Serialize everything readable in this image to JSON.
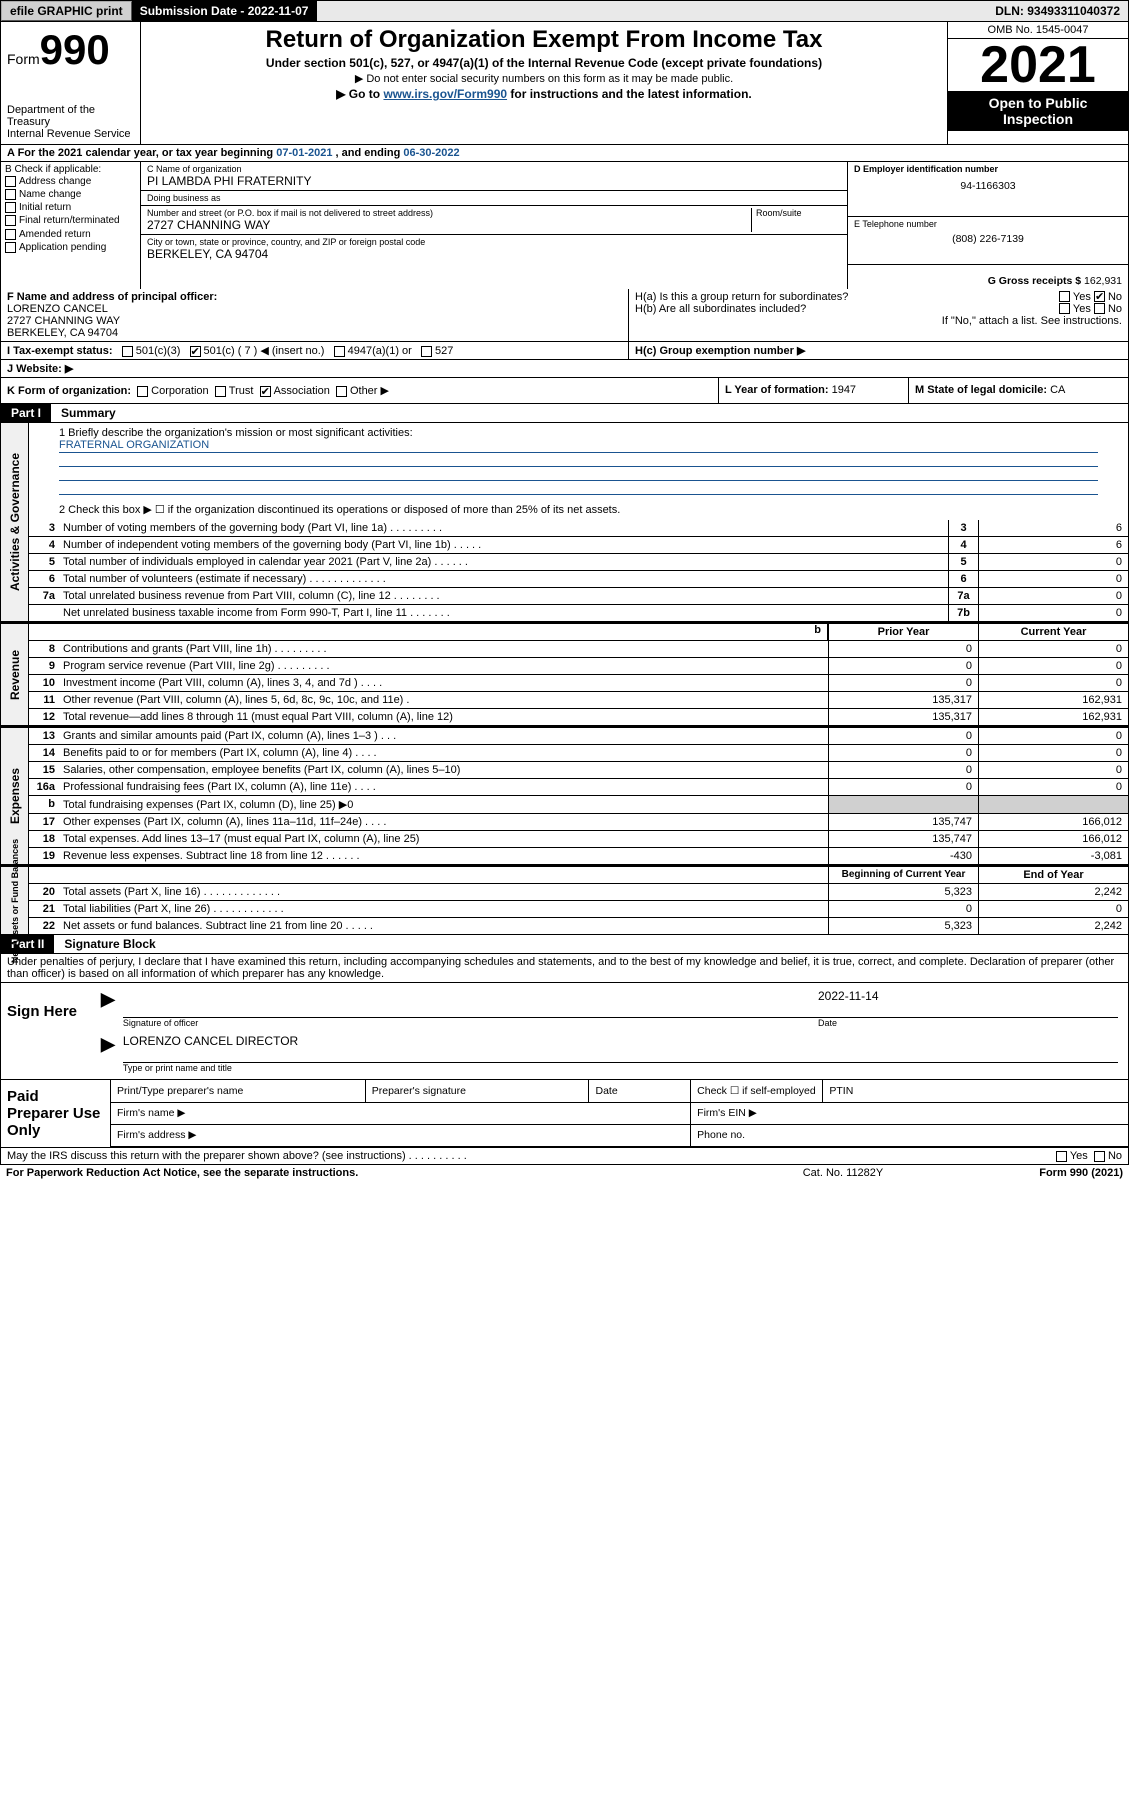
{
  "topbar": {
    "efile": "efile GRAPHIC print",
    "sub_label": "Submission Date - 2022-11-07",
    "dln": "DLN: 93493311040372"
  },
  "header": {
    "form": "Form",
    "form_no": "990",
    "dept": "Department of the Treasury\nInternal Revenue Service",
    "title": "Return of Organization Exempt From Income Tax",
    "sub1": "Under section 501(c), 527, or 4947(a)(1) of the Internal Revenue Code (except private foundations)",
    "sub2": "▶ Do not enter social security numbers on this form as it may be made public.",
    "sub3_a": "▶ Go to ",
    "sub3_link": "www.irs.gov/Form990",
    "sub3_b": " for instructions and the latest information.",
    "omb": "OMB No. 1545-0047",
    "year": "2021",
    "open": "Open to Public Inspection"
  },
  "taxyear": {
    "a": "A For the 2021 calendar year, or tax year beginning ",
    "begin": "07-01-2021",
    "mid": " , and ending ",
    "end": "06-30-2022"
  },
  "boxB": {
    "label": "B Check if applicable:",
    "items": [
      "Address change",
      "Name change",
      "Initial return",
      "Final return/terminated",
      "Amended return",
      "Application pending"
    ]
  },
  "boxC": {
    "name_lbl": "C Name of organization",
    "name": "PI LAMBDA PHI FRATERNITY",
    "dba_lbl": "Doing business as",
    "dba": "",
    "addr_lbl": "Number and street (or P.O. box if mail is not delivered to street address)",
    "room_lbl": "Room/suite",
    "addr": "2727 CHANNING WAY",
    "city_lbl": "City or town, state or province, country, and ZIP or foreign postal code",
    "city": "BERKELEY, CA  94704"
  },
  "boxD": {
    "lbl": "D Employer identification number",
    "val": "94-1166303"
  },
  "boxE": {
    "lbl": "E Telephone number",
    "val": "(808) 226-7139"
  },
  "boxG": {
    "lbl": "G Gross receipts $",
    "val": "162,931"
  },
  "boxF": {
    "lbl": "F Name and address of principal officer:",
    "name": "LORENZO CANCEL",
    "addr1": "2727 CHANNING WAY",
    "addr2": "BERKELEY, CA  94704"
  },
  "boxH": {
    "a": "H(a) Is this a group return for subordinates?",
    "b": "H(b) Are all subordinates included?",
    "note": "If \"No,\" attach a list. See instructions.",
    "c": "H(c) Group exemption number ▶",
    "yes": "Yes",
    "no": "No"
  },
  "boxI": {
    "lbl": "I   Tax-exempt status:",
    "c3": "501(c)(3)",
    "c": "501(c) ( 7 ) ◀ (insert no.)",
    "a1": "4947(a)(1) or",
    "s527": "527"
  },
  "boxJ": {
    "lbl": "J   Website: ▶",
    "val": ""
  },
  "boxK": {
    "lbl": "K Form of organization:",
    "opts": [
      "Corporation",
      "Trust",
      "Association",
      "Other ▶"
    ],
    "checked_idx": 2
  },
  "boxL": {
    "lbl": "L Year of formation:",
    "val": "1947"
  },
  "boxM": {
    "lbl": "M State of legal domicile:",
    "val": "CA"
  },
  "part1": {
    "hdr": "Part I",
    "title": "Summary"
  },
  "summary": {
    "line1_lbl": "1   Briefly describe the organization's mission or most significant activities:",
    "line1_val": "FRATERNAL ORGANIZATION",
    "line2": "2   Check this box ▶ ☐ if the organization discontinued its operations or disposed of more than 25% of its net assets.",
    "rows_gov": [
      {
        "n": "3",
        "d": "Number of voting members of the governing body (Part VI, line 1a)  .   .   .   .   .   .   .   .   .",
        "b": "3",
        "v": "6"
      },
      {
        "n": "4",
        "d": "Number of independent voting members of the governing body (Part VI, line 1b)  .   .   .   .   .",
        "b": "4",
        "v": "6"
      },
      {
        "n": "5",
        "d": "Total number of individuals employed in calendar year 2021 (Part V, line 2a)  .   .   .   .   .   .",
        "b": "5",
        "v": "0"
      },
      {
        "n": "6",
        "d": "Total number of volunteers (estimate if necessary)  .   .   .   .   .   .   .   .   .   .   .   .   .",
        "b": "6",
        "v": "0"
      },
      {
        "n": "7a",
        "d": "Total unrelated business revenue from Part VIII, column (C), line 12  .   .   .   .   .   .   .   .",
        "b": "7a",
        "v": "0"
      },
      {
        "n": "",
        "d": "Net unrelated business taxable income from Form 990-T, Part I, line 11  .   .   .   .   .   .   .",
        "b": "7b",
        "v": "0"
      }
    ],
    "col_prior": "Prior Year",
    "col_current": "Current Year",
    "rows_rev": [
      {
        "n": "8",
        "d": "Contributions and grants (Part VIII, line 1h)  .   .   .   .   .   .   .   .   .",
        "p": "0",
        "c": "0"
      },
      {
        "n": "9",
        "d": "Program service revenue (Part VIII, line 2g)  .   .   .   .   .   .   .   .   .",
        "p": "0",
        "c": "0"
      },
      {
        "n": "10",
        "d": "Investment income (Part VIII, column (A), lines 3, 4, and 7d )  .   .   .   .",
        "p": "0",
        "c": "0"
      },
      {
        "n": "11",
        "d": "Other revenue (Part VIII, column (A), lines 5, 6d, 8c, 9c, 10c, and 11e)  .",
        "p": "135,317",
        "c": "162,931"
      },
      {
        "n": "12",
        "d": "Total revenue—add lines 8 through 11 (must equal Part VIII, column (A), line 12)",
        "p": "135,317",
        "c": "162,931"
      }
    ],
    "rows_exp": [
      {
        "n": "13",
        "d": "Grants and similar amounts paid (Part IX, column (A), lines 1–3 )  .   .   .",
        "p": "0",
        "c": "0"
      },
      {
        "n": "14",
        "d": "Benefits paid to or for members (Part IX, column (A), line 4)  .   .   .   .",
        "p": "0",
        "c": "0"
      },
      {
        "n": "15",
        "d": "Salaries, other compensation, employee benefits (Part IX, column (A), lines 5–10)",
        "p": "0",
        "c": "0"
      },
      {
        "n": "16a",
        "d": "Professional fundraising fees (Part IX, column (A), line 11e)  .   .   .   .",
        "p": "0",
        "c": "0"
      },
      {
        "n": "b",
        "d": "Total fundraising expenses (Part IX, column (D), line 25) ▶0",
        "p": "",
        "c": "",
        "shade": true
      },
      {
        "n": "17",
        "d": "Other expenses (Part IX, column (A), lines 11a–11d, 11f–24e)  .   .   .   .",
        "p": "135,747",
        "c": "166,012"
      },
      {
        "n": "18",
        "d": "Total expenses. Add lines 13–17 (must equal Part IX, column (A), line 25)",
        "p": "135,747",
        "c": "166,012"
      },
      {
        "n": "19",
        "d": "Revenue less expenses. Subtract line 18 from line 12  .   .   .   .   .   .",
        "p": "-430",
        "c": "-3,081"
      }
    ],
    "col_begin": "Beginning of Current Year",
    "col_end": "End of Year",
    "rows_net": [
      {
        "n": "20",
        "d": "Total assets (Part X, line 16)  .   .   .   .   .   .   .   .   .   .   .   .   .",
        "p": "5,323",
        "c": "2,242"
      },
      {
        "n": "21",
        "d": "Total liabilities (Part X, line 26)  .   .   .   .   .   .   .   .   .   .   .   .",
        "p": "0",
        "c": "0"
      },
      {
        "n": "22",
        "d": "Net assets or fund balances. Subtract line 21 from line 20  .   .   .   .   .",
        "p": "5,323",
        "c": "2,242"
      }
    ],
    "side_gov": "Activities & Governance",
    "side_rev": "Revenue",
    "side_exp": "Expenses",
    "side_net": "Net Assets or Fund Balances"
  },
  "part2": {
    "hdr": "Part II",
    "title": "Signature Block",
    "declare": "Under penalties of perjury, I declare that I have examined this return, including accompanying schedules and statements, and to the best of my knowledge and belief, it is true, correct, and complete. Declaration of preparer (other than officer) is based on all information of which preparer has any knowledge.",
    "sign_here": "Sign Here",
    "sig_officer_lbl": "Signature of officer",
    "date_lbl": "Date",
    "date_val": "2022-11-14",
    "officer_name": "LORENZO CANCEL  DIRECTOR",
    "officer_name_lbl": "Type or print name and title",
    "paid_lbl": "Paid Preparer Use Only",
    "prep_name": "Print/Type preparer's name",
    "prep_sig": "Preparer's signature",
    "prep_date": "Date",
    "prep_self": "Check ☐ if self-employed",
    "ptin": "PTIN",
    "firm_name": "Firm's name  ▶",
    "firm_ein": "Firm's EIN ▶",
    "firm_addr": "Firm's address ▶",
    "phone": "Phone no.",
    "may_irs": "May the IRS discuss this return with the preparer shown above? (see instructions)  .   .   .   .   .   .   .   .   .   .",
    "yes": "Yes",
    "no": "No"
  },
  "footer": {
    "a": "For Paperwork Reduction Act Notice, see the separate instructions.",
    "b": "Cat. No. 11282Y",
    "c": "Form 990 (2021)"
  },
  "colors": {
    "link": "#1a5490",
    "shade": "#d0d0d0"
  }
}
